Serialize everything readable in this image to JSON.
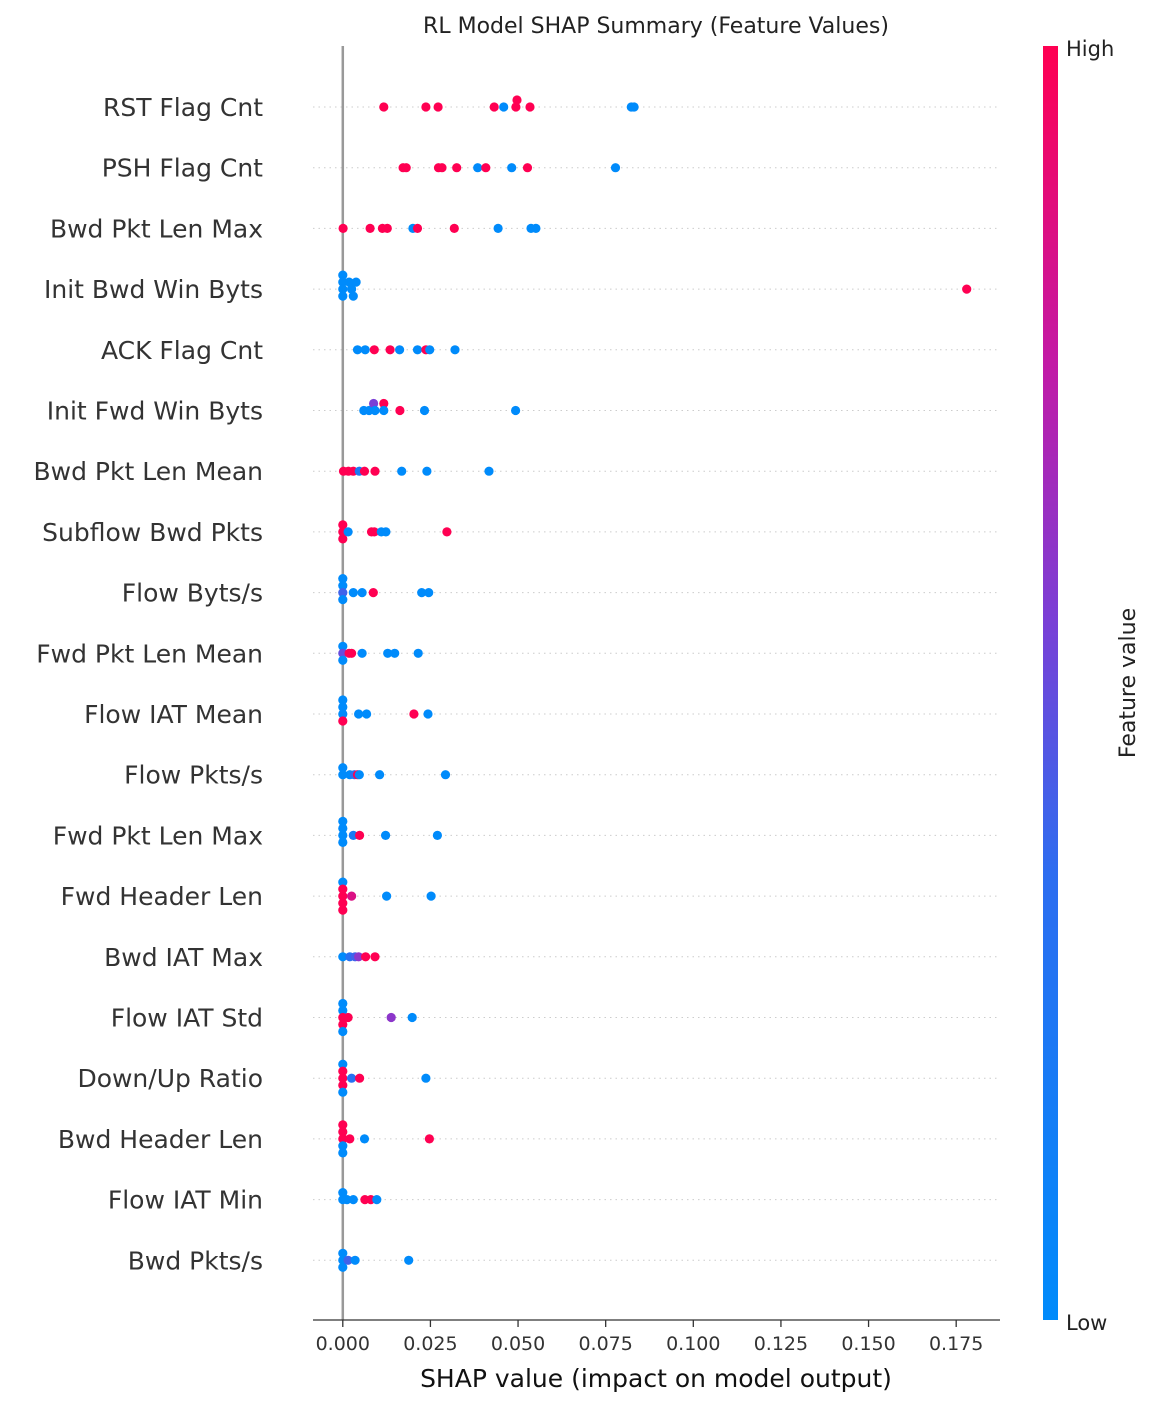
{
  "chart_data": {
    "type": "scatter",
    "title": "RL Model SHAP Summary (Feature Values)",
    "xlabel": "SHAP value (impact on model output)",
    "xlim": [
      -0.0085,
      0.1875
    ],
    "xticks": [
      0.0,
      0.025,
      0.05,
      0.075,
      0.1,
      0.125,
      0.15,
      0.175
    ],
    "xtick_labels": [
      "0.000",
      "0.025",
      "0.050",
      "0.075",
      "0.100",
      "0.125",
      "0.150",
      "0.175"
    ],
    "grid": false,
    "colorbar": {
      "title": "Feature value",
      "high_label": "High",
      "low_label": "Low",
      "low_color": "#008bfb",
      "high_color": "#ff0052"
    },
    "features": [
      {
        "name": "RST Flag Cnt",
        "points": [
          {
            "x": 0.0117,
            "off": 0,
            "v": 1
          },
          {
            "x": 0.0237,
            "off": 0,
            "v": 1
          },
          {
            "x": 0.0272,
            "off": 0,
            "v": 1
          },
          {
            "x": 0.0432,
            "off": 0,
            "v": 1
          },
          {
            "x": 0.0459,
            "off": 0,
            "v": 0
          },
          {
            "x": 0.0494,
            "off": 0,
            "v": 1
          },
          {
            "x": 0.0497,
            "off": 1,
            "v": 1
          },
          {
            "x": 0.0534,
            "off": 0,
            "v": 1
          },
          {
            "x": 0.0823,
            "off": 0,
            "v": 0
          },
          {
            "x": 0.0831,
            "off": 0,
            "v": 0
          }
        ]
      },
      {
        "name": "PSH Flag Cnt",
        "points": [
          {
            "x": 0.0172,
            "off": 0,
            "v": 1
          },
          {
            "x": 0.0181,
            "off": 0,
            "v": 1
          },
          {
            "x": 0.0273,
            "off": 0,
            "v": 1
          },
          {
            "x": 0.0283,
            "off": 0,
            "v": 1
          },
          {
            "x": 0.0325,
            "off": 0,
            "v": 1
          },
          {
            "x": 0.0385,
            "off": 0,
            "v": 0
          },
          {
            "x": 0.0408,
            "off": 0,
            "v": 1
          },
          {
            "x": 0.0482,
            "off": 0,
            "v": 0
          },
          {
            "x": 0.0527,
            "off": 0,
            "v": 1
          },
          {
            "x": 0.0778,
            "off": 0,
            "v": 0
          }
        ]
      },
      {
        "name": "Bwd Pkt Len Max",
        "points": [
          {
            "x": 0.0001,
            "off": 0,
            "v": 1
          },
          {
            "x": 0.0078,
            "off": 0,
            "v": 1
          },
          {
            "x": 0.0113,
            "off": 0,
            "v": 1
          },
          {
            "x": 0.0127,
            "off": 0,
            "v": 1
          },
          {
            "x": 0.02,
            "off": 0,
            "v": 0
          },
          {
            "x": 0.0213,
            "off": 0,
            "v": 1
          },
          {
            "x": 0.0318,
            "off": 0,
            "v": 1
          },
          {
            "x": 0.0443,
            "off": 0,
            "v": 0
          },
          {
            "x": 0.0537,
            "off": 0,
            "v": 0
          },
          {
            "x": 0.0551,
            "off": 0,
            "v": 0
          }
        ]
      },
      {
        "name": "Init Bwd Win Byts",
        "points": [
          {
            "x": 0.0,
            "off": 2,
            "v": 0
          },
          {
            "x": 0.0,
            "off": 1,
            "v": 0
          },
          {
            "x": 0.0,
            "off": 0,
            "v": 0
          },
          {
            "x": 0.0,
            "off": -1,
            "v": 0
          },
          {
            "x": 0.0018,
            "off": 1,
            "v": 0
          },
          {
            "x": 0.0025,
            "off": 0,
            "v": 0
          },
          {
            "x": 0.003,
            "off": -1,
            "v": 0
          },
          {
            "x": 0.0038,
            "off": 1,
            "v": 0
          },
          {
            "x": 0.178,
            "off": 0,
            "v": 1
          }
        ]
      },
      {
        "name": "ACK Flag Cnt",
        "points": [
          {
            "x": 0.0042,
            "off": 0,
            "v": 0
          },
          {
            "x": 0.0064,
            "off": 0,
            "v": 0
          },
          {
            "x": 0.009,
            "off": 0,
            "v": 1
          },
          {
            "x": 0.0135,
            "off": 0,
            "v": 1
          },
          {
            "x": 0.0162,
            "off": 0,
            "v": 0
          },
          {
            "x": 0.0213,
            "off": 0,
            "v": 0
          },
          {
            "x": 0.0237,
            "off": 0,
            "v": 1
          },
          {
            "x": 0.0248,
            "off": 0,
            "v": 0
          },
          {
            "x": 0.032,
            "off": 0,
            "v": 0
          }
        ]
      },
      {
        "name": "Init Fwd Win Byts",
        "points": [
          {
            "x": 0.006,
            "off": 0,
            "v": 0
          },
          {
            "x": 0.0075,
            "off": 0,
            "v": 0
          },
          {
            "x": 0.0088,
            "off": 1,
            "v": 0.55
          },
          {
            "x": 0.0092,
            "off": 0,
            "v": 0
          },
          {
            "x": 0.0117,
            "off": 1,
            "v": 1
          },
          {
            "x": 0.0117,
            "off": 0,
            "v": 0
          },
          {
            "x": 0.0163,
            "off": 0,
            "v": 1
          },
          {
            "x": 0.0233,
            "off": 0,
            "v": 0
          },
          {
            "x": 0.0493,
            "off": 0,
            "v": 0
          }
        ]
      },
      {
        "name": "Bwd Pkt Len Mean",
        "points": [
          {
            "x": 0.0002,
            "off": 0,
            "v": 1
          },
          {
            "x": 0.0016,
            "off": 0,
            "v": 1
          },
          {
            "x": 0.003,
            "off": 0,
            "v": 1
          },
          {
            "x": 0.0047,
            "off": 0,
            "v": 0.2
          },
          {
            "x": 0.0062,
            "off": 0,
            "v": 1
          },
          {
            "x": 0.0092,
            "off": 0,
            "v": 1
          },
          {
            "x": 0.0168,
            "off": 0,
            "v": 0
          },
          {
            "x": 0.024,
            "off": 0,
            "v": 0
          },
          {
            "x": 0.0417,
            "off": 0,
            "v": 0
          }
        ]
      },
      {
        "name": "Subflow Bwd Pkts",
        "points": [
          {
            "x": 0.0,
            "off": 1,
            "v": 1
          },
          {
            "x": 0.0,
            "off": 0,
            "v": 1
          },
          {
            "x": 0.0,
            "off": -1,
            "v": 1
          },
          {
            "x": 0.0015,
            "off": 0,
            "v": 0
          },
          {
            "x": 0.0082,
            "off": 0,
            "v": 1
          },
          {
            "x": 0.009,
            "off": 0,
            "v": 1
          },
          {
            "x": 0.011,
            "off": 0,
            "v": 0
          },
          {
            "x": 0.0123,
            "off": 0,
            "v": 0
          },
          {
            "x": 0.0297,
            "off": 0,
            "v": 1
          }
        ]
      },
      {
        "name": "Flow Byts/s",
        "points": [
          {
            "x": 0.0,
            "off": 2,
            "v": 0
          },
          {
            "x": 0.0,
            "off": 1,
            "v": 0
          },
          {
            "x": 0.0,
            "off": 0,
            "v": 0.4
          },
          {
            "x": 0.0,
            "off": -1,
            "v": 0
          },
          {
            "x": 0.003,
            "off": 0,
            "v": 0
          },
          {
            "x": 0.0055,
            "off": 0,
            "v": 0
          },
          {
            "x": 0.0087,
            "off": 0,
            "v": 1
          },
          {
            "x": 0.0225,
            "off": 0,
            "v": 0
          },
          {
            "x": 0.0245,
            "off": 0,
            "v": 0
          }
        ]
      },
      {
        "name": "Fwd Pkt Len Mean",
        "points": [
          {
            "x": 0.0,
            "off": 1,
            "v": 0
          },
          {
            "x": 0.0,
            "off": 0,
            "v": 0.5
          },
          {
            "x": 0.0,
            "off": -1,
            "v": 0
          },
          {
            "x": 0.0018,
            "off": 0,
            "v": 1
          },
          {
            "x": 0.0025,
            "off": 0,
            "v": 1
          },
          {
            "x": 0.0055,
            "off": 0,
            "v": 0
          },
          {
            "x": 0.0128,
            "off": 0,
            "v": 0
          },
          {
            "x": 0.0148,
            "off": 0,
            "v": 0
          },
          {
            "x": 0.0215,
            "off": 0,
            "v": 0
          }
        ]
      },
      {
        "name": "Flow IAT Mean",
        "points": [
          {
            "x": 0.0,
            "off": 2,
            "v": 0
          },
          {
            "x": 0.0,
            "off": 1,
            "v": 0
          },
          {
            "x": 0.0,
            "off": 0,
            "v": 0
          },
          {
            "x": 0.0,
            "off": -1,
            "v": 1
          },
          {
            "x": 0.0045,
            "off": 0,
            "v": 0
          },
          {
            "x": 0.0068,
            "off": 0,
            "v": 0
          },
          {
            "x": 0.0203,
            "off": 0,
            "v": 1
          },
          {
            "x": 0.0243,
            "off": 0,
            "v": 0
          }
        ]
      },
      {
        "name": "Flow Pkts/s",
        "points": [
          {
            "x": 0.0,
            "off": 1,
            "v": 0
          },
          {
            "x": 0.0,
            "off": 0,
            "v": 0
          },
          {
            "x": 0.002,
            "off": 0,
            "v": 0
          },
          {
            "x": 0.0033,
            "off": 0,
            "v": 0.3
          },
          {
            "x": 0.0042,
            "off": 0,
            "v": 1
          },
          {
            "x": 0.0047,
            "off": 0,
            "v": 0
          },
          {
            "x": 0.0105,
            "off": 0,
            "v": 0
          },
          {
            "x": 0.0293,
            "off": 0,
            "v": 0
          }
        ]
      },
      {
        "name": "Fwd Pkt Len Max",
        "points": [
          {
            "x": 0.0,
            "off": 2,
            "v": 0
          },
          {
            "x": 0.0,
            "off": 1,
            "v": 0
          },
          {
            "x": 0.0,
            "off": 0,
            "v": 0
          },
          {
            "x": 0.0,
            "off": -1,
            "v": 0
          },
          {
            "x": 0.003,
            "off": 0,
            "v": 0.2
          },
          {
            "x": 0.0048,
            "off": 0,
            "v": 1
          },
          {
            "x": 0.0122,
            "off": 0,
            "v": 0
          },
          {
            "x": 0.027,
            "off": 0,
            "v": 0
          }
        ]
      },
      {
        "name": "Fwd Header Len",
        "points": [
          {
            "x": 0.0,
            "off": 2,
            "v": 0
          },
          {
            "x": 0.0,
            "off": 1,
            "v": 1
          },
          {
            "x": 0.0,
            "off": 0,
            "v": 1
          },
          {
            "x": 0.0,
            "off": -1,
            "v": 1
          },
          {
            "x": 0.0,
            "off": -2,
            "v": 1
          },
          {
            "x": 0.0025,
            "off": 0,
            "v": 0.85
          },
          {
            "x": 0.0125,
            "off": 0,
            "v": 0
          },
          {
            "x": 0.0252,
            "off": 0,
            "v": 0
          }
        ]
      },
      {
        "name": "Bwd IAT Max",
        "points": [
          {
            "x": 0.0,
            "off": 0,
            "v": 0
          },
          {
            "x": 0.002,
            "off": 0,
            "v": 0.3
          },
          {
            "x": 0.0035,
            "off": 0,
            "v": 0.4
          },
          {
            "x": 0.0045,
            "off": 0,
            "v": 0.6
          },
          {
            "x": 0.0065,
            "off": 0,
            "v": 1
          },
          {
            "x": 0.0092,
            "off": 0,
            "v": 1
          }
        ]
      },
      {
        "name": "Flow IAT Std",
        "points": [
          {
            "x": 0.0,
            "off": 2,
            "v": 0
          },
          {
            "x": 0.0,
            "off": 1,
            "v": 0
          },
          {
            "x": 0.0,
            "off": 0,
            "v": 1
          },
          {
            "x": 0.0,
            "off": -1,
            "v": 1
          },
          {
            "x": 0.0,
            "off": -2,
            "v": 0
          },
          {
            "x": 0.0015,
            "off": 0,
            "v": 1
          },
          {
            "x": 0.0138,
            "off": 0,
            "v": 0.6
          },
          {
            "x": 0.0198,
            "off": 0,
            "v": 0
          }
        ]
      },
      {
        "name": "Down/Up Ratio",
        "points": [
          {
            "x": 0.0,
            "off": 2,
            "v": 0
          },
          {
            "x": 0.0,
            "off": 1,
            "v": 1
          },
          {
            "x": 0.0,
            "off": 0,
            "v": 1
          },
          {
            "x": 0.0,
            "off": -1,
            "v": 1
          },
          {
            "x": 0.0,
            "off": -2,
            "v": 0
          },
          {
            "x": 0.0025,
            "off": 0,
            "v": 0.3
          },
          {
            "x": 0.0048,
            "off": 0,
            "v": 1
          },
          {
            "x": 0.0237,
            "off": 0,
            "v": 0
          }
        ]
      },
      {
        "name": "Bwd Header Len",
        "points": [
          {
            "x": 0.0,
            "off": 2,
            "v": 1
          },
          {
            "x": 0.0,
            "off": 1,
            "v": 1
          },
          {
            "x": 0.0,
            "off": 0,
            "v": 1
          },
          {
            "x": 0.0,
            "off": -1,
            "v": 0
          },
          {
            "x": 0.0,
            "off": -2,
            "v": 0
          },
          {
            "x": 0.002,
            "off": 0,
            "v": 1
          },
          {
            "x": 0.0062,
            "off": 0,
            "v": 0
          },
          {
            "x": 0.0247,
            "off": 0,
            "v": 1
          }
        ]
      },
      {
        "name": "Flow IAT Min",
        "points": [
          {
            "x": 0.0,
            "off": 1,
            "v": 0
          },
          {
            "x": 0.0,
            "off": 0,
            "v": 0
          },
          {
            "x": 0.0012,
            "off": 0,
            "v": 0
          },
          {
            "x": 0.003,
            "off": 0,
            "v": 0
          },
          {
            "x": 0.0063,
            "off": 0,
            "v": 1
          },
          {
            "x": 0.008,
            "off": 0,
            "v": 1
          },
          {
            "x": 0.0097,
            "off": 0,
            "v": 0
          }
        ]
      },
      {
        "name": "Bwd Pkts/s",
        "points": [
          {
            "x": 0.0,
            "off": 1,
            "v": 0
          },
          {
            "x": 0.0,
            "off": 0,
            "v": 0
          },
          {
            "x": 0.0,
            "off": -1,
            "v": 0
          },
          {
            "x": 0.0015,
            "off": 0,
            "v": 0.4
          },
          {
            "x": 0.0035,
            "off": 0,
            "v": 0
          },
          {
            "x": 0.0188,
            "off": 0,
            "v": 0
          }
        ]
      }
    ]
  }
}
